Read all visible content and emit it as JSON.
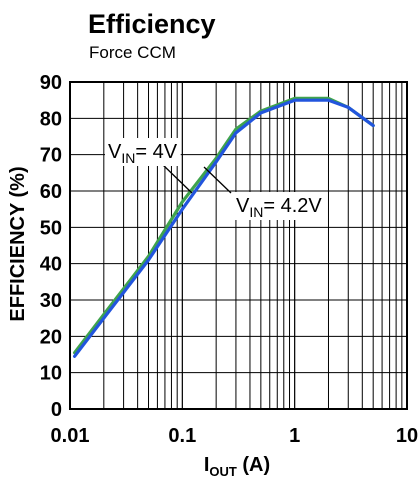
{
  "chart_data": {
    "type": "line",
    "title": "Efficiency",
    "subtitle": "Force CCM",
    "xlabel": {
      "main": "I",
      "sub": "OUT",
      "unit": " (A)"
    },
    "ylabel": "EFFICIENCY (%)",
    "xscale": "log",
    "xlim": [
      0.01,
      10
    ],
    "ylim": [
      0,
      90
    ],
    "grid": true,
    "x_ticks": [
      {
        "value": 0.01,
        "label": "0.01"
      },
      {
        "value": 0.1,
        "label": "0.1"
      },
      {
        "value": 1,
        "label": "1"
      },
      {
        "value": 10,
        "label": "10"
      }
    ],
    "y_ticks": [
      {
        "value": 0,
        "label": "0"
      },
      {
        "value": 10,
        "label": "10"
      },
      {
        "value": 20,
        "label": "20"
      },
      {
        "value": 30,
        "label": "30"
      },
      {
        "value": 40,
        "label": "40"
      },
      {
        "value": 50,
        "label": "50"
      },
      {
        "value": 60,
        "label": "60"
      },
      {
        "value": 70,
        "label": "70"
      },
      {
        "value": 80,
        "label": "80"
      },
      {
        "value": 90,
        "label": "90"
      }
    ],
    "series": [
      {
        "name": "VIN= 4V",
        "color": "#3fa34d",
        "x": [
          0.011,
          0.02,
          0.05,
          0.1,
          0.2,
          0.3,
          0.5,
          1,
          2,
          3,
          5
        ],
        "y": [
          15.5,
          26,
          42,
          57,
          69,
          77,
          82,
          85.5,
          85.5,
          83,
          78
        ]
      },
      {
        "name": "VIN= 4.2V",
        "color": "#2255dd",
        "x": [
          0.011,
          0.02,
          0.05,
          0.1,
          0.2,
          0.3,
          0.5,
          1,
          2,
          3,
          5
        ],
        "y": [
          14.5,
          25,
          41,
          55,
          68,
          76,
          81.5,
          85,
          85,
          83,
          78
        ]
      }
    ],
    "annotations": [
      {
        "main": "V",
        "sub": "IN",
        "rest": "= 4V",
        "series": "VIN= 4V"
      },
      {
        "main": "V",
        "sub": "IN",
        "rest": "= 4.2V",
        "series": "VIN= 4.2V"
      }
    ]
  }
}
